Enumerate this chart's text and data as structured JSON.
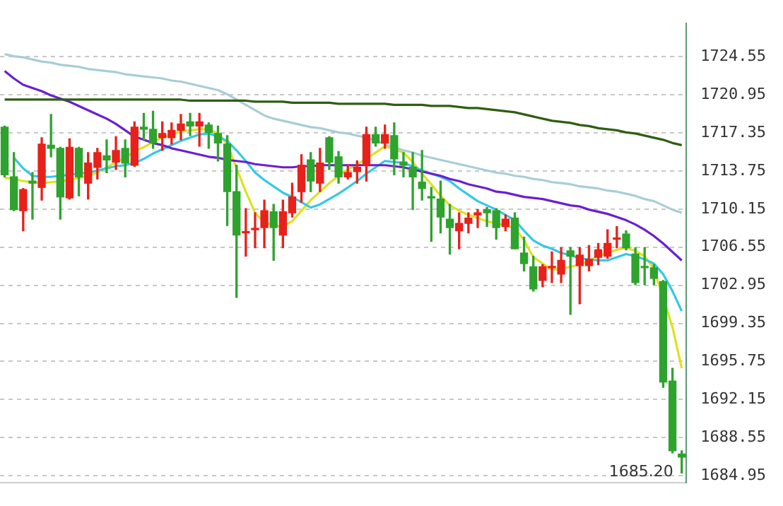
{
  "chart_data": {
    "type": "candlestick",
    "categories": [
      null,
      null,
      null,
      null,
      null,
      null,
      null,
      null,
      null,
      null,
      null,
      null,
      null,
      null,
      null,
      null,
      null,
      null,
      null,
      null,
      null,
      null,
      null,
      null,
      null,
      null,
      null,
      null,
      null,
      null,
      null,
      null,
      null,
      null,
      null,
      null,
      null,
      null,
      null,
      null,
      null,
      null,
      null,
      null,
      null,
      null,
      null,
      null,
      null,
      null,
      null,
      null,
      null,
      null,
      null,
      null,
      null,
      null,
      null,
      null,
      null,
      null,
      null,
      null,
      null,
      null,
      null,
      null,
      null,
      null,
      null,
      null,
      null,
      null
    ],
    "ohlc": [
      [
        1717.9,
        1718.0,
        1713.2,
        1713.4
      ],
      [
        1713.2,
        1715.5,
        1710.0,
        1710.1
      ],
      [
        1710.0,
        1712.1,
        1708.1,
        1712.0
      ],
      [
        1712.8,
        1713.6,
        1709.2,
        1712.6
      ],
      [
        1712.2,
        1716.9,
        1711.0,
        1716.3
      ],
      [
        1716.2,
        1719.1,
        1715.1,
        1715.9
      ],
      [
        1715.9,
        1716.0,
        1709.2,
        1711.3
      ],
      [
        1711.2,
        1716.8,
        1711.1,
        1716.0
      ],
      [
        1715.9,
        1716.0,
        1711.4,
        1713.2
      ],
      [
        1712.6,
        1715.5,
        1711.1,
        1714.5
      ],
      [
        1714.1,
        1715.9,
        1713.0,
        1715.5
      ],
      [
        1715.2,
        1716.7,
        1713.6,
        1714.8
      ],
      [
        1714.6,
        1717.0,
        1713.9,
        1715.7
      ],
      [
        1715.9,
        1716.7,
        1713.2,
        1714.5
      ],
      [
        1714.3,
        1718.4,
        1714.2,
        1717.9
      ],
      [
        1717.9,
        1719.2,
        1716.7,
        1717.7
      ],
      [
        1717.7,
        1719.4,
        1715.9,
        1716.4
      ],
      [
        1716.9,
        1718.4,
        1715.7,
        1717.3
      ],
      [
        1716.9,
        1718.3,
        1716.3,
        1717.6
      ],
      [
        1717.6,
        1719.1,
        1716.7,
        1718.2
      ],
      [
        1718.4,
        1719.2,
        1717.1,
        1718.0
      ],
      [
        1718.0,
        1719.2,
        1716.1,
        1718.4
      ],
      [
        1718.1,
        1718.3,
        1715.9,
        1717.4
      ],
      [
        1717.3,
        1718.0,
        1714.7,
        1716.4
      ],
      [
        1716.3,
        1717.1,
        1708.6,
        1711.8
      ],
      [
        1711.8,
        1714.3,
        1701.8,
        1707.7
      ],
      [
        1707.9,
        1710.2,
        1705.7,
        1708.0
      ],
      [
        1708.2,
        1709.8,
        1706.5,
        1708.3
      ],
      [
        1708.4,
        1711.0,
        1706.5,
        1710.0
      ],
      [
        1709.9,
        1710.6,
        1705.3,
        1708.4
      ],
      [
        1707.7,
        1711.0,
        1706.5,
        1709.9
      ],
      [
        1709.8,
        1712.6,
        1709.4,
        1711.3
      ],
      [
        1711.8,
        1715.3,
        1710.8,
        1714.3
      ],
      [
        1714.8,
        1715.5,
        1711.8,
        1712.8
      ],
      [
        1712.6,
        1715.9,
        1711.8,
        1714.5
      ],
      [
        1716.9,
        1717.0,
        1713.9,
        1714.6
      ],
      [
        1715.1,
        1715.6,
        1712.6,
        1713.2
      ],
      [
        1713.2,
        1714.3,
        1713.0,
        1713.6
      ],
      [
        1713.7,
        1714.7,
        1712.6,
        1714.1
      ],
      [
        1714.3,
        1717.9,
        1712.8,
        1717.2
      ],
      [
        1717.2,
        1717.9,
        1716.1,
        1716.4
      ],
      [
        1716.4,
        1718.1,
        1715.9,
        1717.2
      ],
      [
        1717.1,
        1718.3,
        1713.4,
        1714.9
      ],
      [
        1714.6,
        1715.5,
        1713.2,
        1714.3
      ],
      [
        1714.1,
        1715.5,
        1710.1,
        1713.2
      ],
      [
        1712.7,
        1715.7,
        1711.0,
        1712.1
      ],
      [
        1711.3,
        1712.2,
        1707.1,
        1711.2
      ],
      [
        1711.1,
        1712.8,
        1707.9,
        1709.4
      ],
      [
        1709.2,
        1710.6,
        1705.9,
        1708.4
      ],
      [
        1708.1,
        1709.8,
        1706.4,
        1708.8
      ],
      [
        1708.8,
        1709.8,
        1707.9,
        1709.3
      ],
      [
        1709.6,
        1710.1,
        1708.4,
        1709.8
      ],
      [
        1710.1,
        1710.3,
        1708.5,
        1709.8
      ],
      [
        1710.0,
        1710.2,
        1707.3,
        1708.4
      ],
      [
        1708.5,
        1709.6,
        1708.1,
        1709.2
      ],
      [
        1709.3,
        1709.8,
        1706.4,
        1706.4
      ],
      [
        1706.0,
        1707.5,
        1704.3,
        1705.0
      ],
      [
        1704.7,
        1705.7,
        1702.4,
        1702.6
      ],
      [
        1703.4,
        1704.9,
        1702.8,
        1704.7
      ],
      [
        1704.6,
        1706.1,
        1703.2,
        1704.7
      ],
      [
        1704.0,
        1706.5,
        1703.2,
        1705.3
      ],
      [
        1706.2,
        1706.5,
        1700.2,
        1705.7
      ],
      [
        1704.8,
        1706.5,
        1701.2,
        1705.8
      ],
      [
        1704.8,
        1706.7,
        1704.3,
        1705.4
      ],
      [
        1705.6,
        1706.9,
        1704.9,
        1706.3
      ],
      [
        1705.7,
        1708.2,
        1705.5,
        1706.9
      ],
      [
        1707.3,
        1708.5,
        1706.5,
        1707.4
      ],
      [
        1707.8,
        1708.1,
        1706.3,
        1706.5
      ],
      [
        1705.9,
        1706.5,
        1703.0,
        1703.2
      ],
      [
        1704.7,
        1706.5,
        1703.0,
        1704.6
      ],
      [
        1704.6,
        1704.9,
        1703.0,
        1703.6
      ],
      [
        1703.3,
        1703.4,
        1693.3,
        1693.8
      ],
      [
        1693.9,
        1695.1,
        1687.1,
        1687.3
      ],
      [
        1687.0,
        1687.3,
        1685.2,
        1686.7
      ]
    ],
    "series": [
      {
        "type": "line",
        "color": "#2f5e12",
        "values": [
          1720.5,
          1720.5,
          1720.5,
          1720.5,
          1720.5,
          1720.5,
          1720.5,
          1720.5,
          1720.5,
          1720.5,
          1720.5,
          1720.5,
          1720.5,
          1720.5,
          1720.5,
          1720.5,
          1720.5,
          1720.5,
          1720.5,
          1720.5,
          1720.4,
          1720.4,
          1720.4,
          1720.4,
          1720.4,
          1720.4,
          1720.4,
          1720.3,
          1720.3,
          1720.3,
          1720.3,
          1720.2,
          1720.2,
          1720.2,
          1720.2,
          1720.2,
          1720.1,
          1720.1,
          1720.1,
          1720.1,
          1720.1,
          1720.1,
          1720.0,
          1720.0,
          1720.0,
          1720.0,
          1719.9,
          1719.9,
          1719.9,
          1719.8,
          1719.7,
          1719.7,
          1719.6,
          1719.5,
          1719.4,
          1719.3,
          1719.1,
          1718.9,
          1718.7,
          1718.5,
          1718.4,
          1718.3,
          1718.1,
          1718.0,
          1717.8,
          1717.7,
          1717.6,
          1717.4,
          1717.3,
          1717.1,
          1716.9,
          1716.7,
          1716.4,
          1716.2
        ]
      },
      {
        "type": "line",
        "color": "#a9cdd6",
        "values": [
          1724.8,
          1724.6,
          1724.5,
          1724.3,
          1724.1,
          1724.0,
          1723.8,
          1723.7,
          1723.6,
          1723.4,
          1723.3,
          1723.2,
          1723.1,
          1722.9,
          1722.8,
          1722.7,
          1722.6,
          1722.5,
          1722.3,
          1722.2,
          1722.0,
          1721.8,
          1721.6,
          1721.4,
          1721.0,
          1720.5,
          1720.0,
          1719.5,
          1719.0,
          1718.7,
          1718.5,
          1718.3,
          1718.1,
          1717.9,
          1717.8,
          1717.6,
          1717.4,
          1717.3,
          1717.1,
          1716.9,
          1716.6,
          1716.3,
          1716.0,
          1715.7,
          1715.5,
          1715.2,
          1715.0,
          1714.8,
          1714.6,
          1714.4,
          1714.2,
          1714.0,
          1713.8,
          1713.6,
          1713.5,
          1713.3,
          1713.2,
          1713.0,
          1712.9,
          1712.7,
          1712.6,
          1712.5,
          1712.3,
          1712.2,
          1712.1,
          1711.9,
          1711.8,
          1711.6,
          1711.4,
          1711.1,
          1710.9,
          1710.5,
          1710.1,
          1709.8
        ]
      },
      {
        "type": "line",
        "color": "#6a1fd0",
        "values": [
          1723.2,
          1722.5,
          1721.9,
          1721.6,
          1721.3,
          1720.9,
          1720.6,
          1720.3,
          1719.9,
          1719.5,
          1719.1,
          1718.7,
          1718.2,
          1717.6,
          1717.0,
          1716.7,
          1716.4,
          1716.2,
          1715.9,
          1715.7,
          1715.5,
          1715.3,
          1715.1,
          1715.0,
          1714.8,
          1714.7,
          1714.6,
          1714.4,
          1714.3,
          1714.2,
          1714.1,
          1714.1,
          1714.2,
          1714.2,
          1714.3,
          1714.3,
          1714.3,
          1714.3,
          1714.3,
          1714.3,
          1714.3,
          1714.3,
          1714.2,
          1714.1,
          1713.9,
          1713.7,
          1713.5,
          1713.3,
          1713.0,
          1712.8,
          1712.5,
          1712.3,
          1712.1,
          1711.8,
          1711.7,
          1711.5,
          1711.3,
          1711.2,
          1711.1,
          1710.9,
          1710.7,
          1710.5,
          1710.4,
          1710.1,
          1709.9,
          1709.7,
          1709.4,
          1709.1,
          1708.7,
          1708.2,
          1707.6,
          1706.9,
          1706.1,
          1705.3
        ]
      },
      {
        "type": "line",
        "color": "#33c8e6",
        "values": [
          null,
          1715.0,
          1714.0,
          1713.3,
          1713.2,
          1713.2,
          1713.3,
          1713.4,
          1713.5,
          1713.6,
          1713.8,
          1714.0,
          1714.2,
          1714.3,
          1714.5,
          1714.9,
          1715.4,
          1715.8,
          1716.2,
          1716.6,
          1716.9,
          1717.2,
          1717.3,
          1717.0,
          1716.6,
          1715.7,
          1714.7,
          1713.6,
          1712.9,
          1712.3,
          1711.7,
          1711.3,
          1710.8,
          1710.3,
          1710.6,
          1711.1,
          1711.6,
          1712.2,
          1712.8,
          1713.5,
          1714.1,
          1714.7,
          1714.6,
          1714.5,
          1714.2,
          1713.8,
          1713.5,
          1713.2,
          1712.8,
          1712.1,
          1711.5,
          1710.9,
          1710.5,
          1710.1,
          1709.6,
          1709.1,
          1708.1,
          1707.2,
          1706.7,
          1706.4,
          1706.0,
          1705.8,
          1705.5,
          1705.4,
          1705.3,
          1705.3,
          1705.6,
          1705.9,
          1705.7,
          1705.4,
          1705.0,
          1704.0,
          1702.4,
          1700.5
        ]
      },
      {
        "type": "line",
        "color": "#e0e020",
        "values": [
          1713.1,
          1713.0,
          1712.8,
          1712.7,
          1712.6,
          1712.7,
          1712.8,
          1712.9,
          1713.1,
          1713.3,
          1713.6,
          1714.1,
          1714.6,
          1715.0,
          1715.6,
          1716.0,
          1716.5,
          1716.9,
          1717.2,
          1717.5,
          1717.6,
          1717.7,
          1717.7,
          1717.3,
          1716.3,
          1714.0,
          1711.8,
          1709.8,
          1708.9,
          1708.6,
          1708.5,
          1709.0,
          1710.0,
          1711.0,
          1711.8,
          1712.6,
          1713.3,
          1713.9,
          1714.4,
          1714.9,
          1715.5,
          1716.1,
          1715.8,
          1715.5,
          1714.6,
          1713.5,
          1712.5,
          1711.4,
          1710.5,
          1710.0,
          1709.6,
          1709.3,
          1709.0,
          1708.8,
          1708.6,
          1708.4,
          1707.2,
          1705.6,
          1705.0,
          1704.4,
          1704.5,
          1704.7,
          1704.9,
          1705.3,
          1705.7,
          1706.0,
          1706.3,
          1706.5,
          1706.2,
          1705.7,
          1704.5,
          null,
          1699.0,
          1695.1
        ]
      }
    ],
    "ylim": [
      1684.3,
      1727.7
    ],
    "yticks": [
      1724.55,
      1720.95,
      1717.35,
      1713.75,
      1710.15,
      1706.55,
      1702.95,
      1699.35,
      1695.75,
      1692.15,
      1688.55,
      1684.95
    ],
    "grid": "y",
    "legend": false,
    "tick_labels": "y",
    "annotations": [
      "1685.20"
    ]
  }
}
